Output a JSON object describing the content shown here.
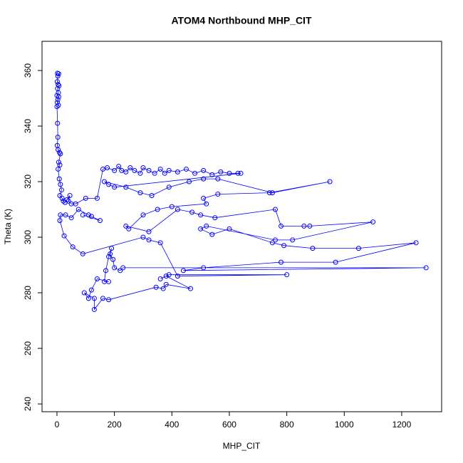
{
  "chart_data": {
    "type": "line",
    "markers": true,
    "title": "ATOM4 Northbound MHP_CIT",
    "x_label": "MHP_CIT",
    "y_label": "Theta (K)",
    "color": "#0000ff",
    "x": [
      2,
      6,
      3,
      1,
      4,
      7,
      2,
      5,
      0,
      6,
      3,
      1,
      5,
      0,
      2,
      3,
      1,
      4,
      9,
      12,
      6,
      10,
      4,
      8,
      12,
      16,
      10,
      18,
      22,
      28,
      35,
      45,
      40,
      50,
      65,
      100,
      140,
      160,
      175,
      200,
      215,
      225,
      240,
      255,
      270,
      290,
      300,
      320,
      340,
      360,
      375,
      390,
      420,
      450,
      480,
      510,
      540,
      570,
      600,
      630,
      640,
      200,
      180,
      165,
      240,
      290,
      330,
      390,
      460,
      510,
      560,
      750,
      950,
      740,
      560,
      510,
      520,
      400,
      350,
      300,
      250,
      240,
      320,
      420,
      470,
      500,
      550,
      760,
      780,
      860,
      880,
      1100,
      820,
      760,
      520,
      500,
      540,
      600,
      750,
      790,
      890,
      1050,
      1250,
      970,
      780,
      510,
      440,
      1285,
      230,
      220,
      200,
      195,
      185,
      190,
      180,
      170,
      165,
      180,
      140,
      120,
      110,
      95,
      130,
      130,
      160,
      180,
      345,
      370,
      380,
      465,
      380,
      360,
      390,
      800,
      420,
      360,
      320,
      300,
      90,
      55,
      25,
      10,
      12,
      30,
      50,
      75,
      110,
      120,
      150,
      90
    ],
    "values": [
      359,
      358.8,
      358,
      356,
      355,
      354.5,
      353.5,
      352,
      351,
      350.5,
      349.5,
      348.5,
      347.5,
      347,
      341,
      336,
      333,
      331.5,
      330.5,
      330,
      327,
      326,
      324.5,
      321,
      319,
      317,
      315,
      314,
      313,
      312.5,
      313.5,
      315,
      313,
      312,
      312,
      314,
      314,
      324.5,
      325,
      324,
      325.5,
      324,
      323.5,
      325,
      324,
      323,
      325,
      324,
      323,
      324.5,
      323,
      324,
      323.5,
      324.5,
      323,
      324,
      322.5,
      323.5,
      323,
      323,
      323,
      318,
      319,
      320,
      318,
      316,
      315,
      318,
      320,
      321,
      321,
      316,
      320,
      316,
      315.5,
      314,
      312,
      311,
      310,
      308,
      303,
      304,
      302,
      310,
      309,
      308,
      307,
      310,
      304,
      304,
      304,
      305.5,
      299,
      299,
      304,
      303,
      301,
      303,
      298,
      297,
      296,
      296,
      298,
      291,
      291,
      289,
      288,
      289,
      289,
      288,
      289,
      292,
      294,
      296,
      293,
      288,
      284,
      284,
      285,
      281,
      278,
      280,
      278,
      274,
      278,
      277.5,
      282,
      281.5,
      283,
      281.5,
      286,
      285,
      286.5,
      286.5,
      286,
      298,
      299,
      300,
      294,
      296.5,
      300.5,
      306,
      308,
      308,
      307,
      310,
      308,
      307.5,
      306,
      308
    ],
    "xlim": [
      -52,
      1339
    ],
    "ylim": [
      237.2,
      370.5
    ],
    "xticks": [
      0,
      200,
      400,
      600,
      800,
      1000,
      1200
    ],
    "yticks": [
      240,
      260,
      280,
      300,
      320,
      340,
      360
    ]
  }
}
